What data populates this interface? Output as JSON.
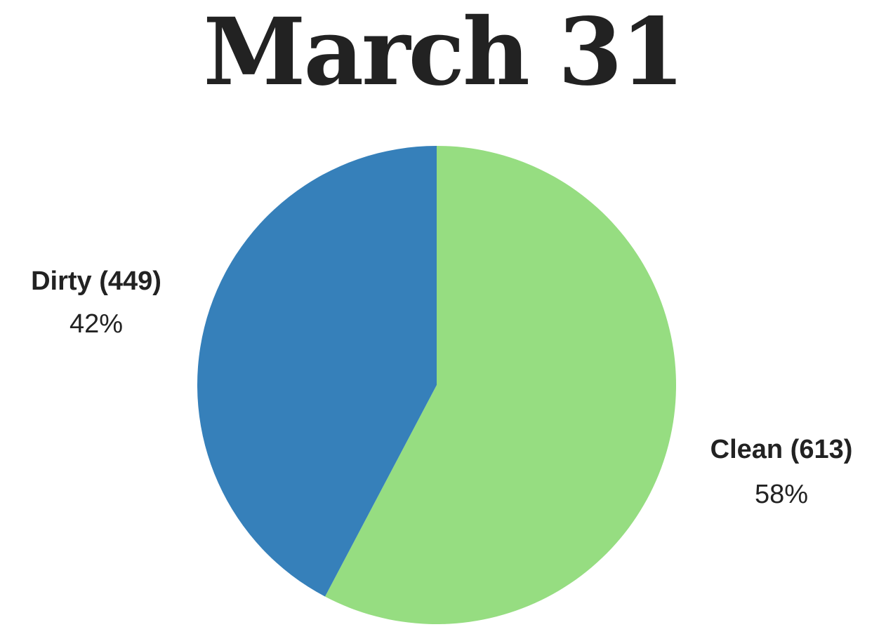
{
  "chart_data": {
    "type": "pie",
    "title": "March 31",
    "slices": [
      {
        "label": "Clean (613)",
        "value": 613,
        "percent_label": "58%",
        "color": "#96dd81"
      },
      {
        "label": "Dirty (449)",
        "value": 449,
        "percent_label": "42%",
        "color": "#3680ba"
      }
    ],
    "legend": "none"
  }
}
